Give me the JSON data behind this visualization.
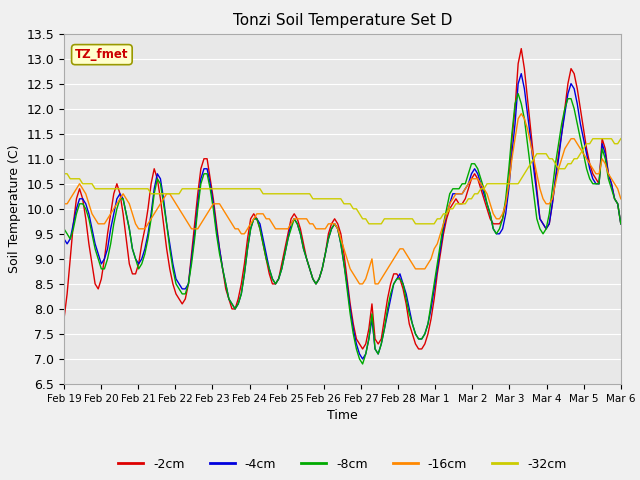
{
  "title": "Tonzi Soil Temperature Set D",
  "xlabel": "Time",
  "ylabel": "Soil Temperature (C)",
  "ylim": [
    6.5,
    13.5
  ],
  "legend_label": "TZ_fmet",
  "series_labels": [
    "-2cm",
    "-4cm",
    "-8cm",
    "-16cm",
    "-32cm"
  ],
  "series_colors": [
    "#dd0000",
    "#0000dd",
    "#00aa00",
    "#ff8800",
    "#cccc00"
  ],
  "xtick_labels": [
    "Feb 19",
    "Feb 20",
    "Feb 21",
    "Feb 22",
    "Feb 23",
    "Feb 24",
    "Feb 25",
    "Feb 26",
    "Feb 27",
    "Feb 28",
    "Mar 1",
    "Mar 2",
    "Mar 3",
    "Mar 4",
    "Mar 5",
    "Mar 6"
  ],
  "ytick_vals": [
    6.5,
    7.0,
    7.5,
    8.0,
    8.5,
    9.0,
    9.5,
    10.0,
    10.5,
    11.0,
    11.5,
    12.0,
    12.5,
    13.0,
    13.5
  ],
  "data_2cm": [
    7.8,
    8.3,
    9.0,
    9.7,
    10.2,
    10.4,
    10.2,
    9.8,
    9.3,
    8.9,
    8.5,
    8.4,
    8.6,
    9.0,
    9.5,
    9.9,
    10.3,
    10.5,
    10.3,
    9.9,
    9.4,
    8.9,
    8.7,
    8.7,
    8.9,
    9.3,
    9.6,
    10.0,
    10.5,
    10.8,
    10.6,
    10.2,
    9.7,
    9.2,
    8.8,
    8.5,
    8.3,
    8.2,
    8.1,
    8.2,
    8.5,
    9.1,
    9.7,
    10.3,
    10.8,
    11.0,
    11.0,
    10.6,
    10.2,
    9.7,
    9.2,
    8.8,
    8.4,
    8.2,
    8.0,
    8.0,
    8.2,
    8.5,
    8.9,
    9.4,
    9.8,
    9.9,
    9.8,
    9.6,
    9.3,
    9.0,
    8.7,
    8.5,
    8.5,
    8.6,
    8.9,
    9.2,
    9.5,
    9.8,
    9.9,
    9.8,
    9.6,
    9.3,
    9.0,
    8.8,
    8.6,
    8.5,
    8.6,
    8.8,
    9.1,
    9.5,
    9.7,
    9.8,
    9.7,
    9.5,
    9.1,
    8.6,
    8.1,
    7.7,
    7.4,
    7.3,
    7.2,
    7.3,
    7.6,
    8.1,
    7.4,
    7.3,
    7.4,
    7.8,
    8.2,
    8.5,
    8.7,
    8.7,
    8.6,
    8.4,
    8.1,
    7.7,
    7.5,
    7.3,
    7.2,
    7.2,
    7.3,
    7.5,
    7.8,
    8.2,
    8.7,
    9.1,
    9.5,
    9.8,
    10.0,
    10.1,
    10.2,
    10.1,
    10.1,
    10.2,
    10.4,
    10.6,
    10.7,
    10.6,
    10.4,
    10.2,
    10.0,
    9.8,
    9.7,
    9.7,
    9.7,
    9.8,
    10.1,
    10.5,
    11.4,
    12.0,
    12.9,
    13.2,
    12.8,
    12.2,
    11.6,
    11.0,
    10.4,
    9.8,
    9.7,
    9.6,
    9.7,
    10.1,
    10.6,
    11.1,
    11.5,
    12.0,
    12.5,
    12.8,
    12.7,
    12.4,
    12.0,
    11.6,
    11.2,
    10.9,
    10.7,
    10.6,
    10.5,
    11.4,
    11.2,
    10.7,
    10.5,
    10.2,
    10.1,
    9.7
  ],
  "data_4cm": [
    9.4,
    9.3,
    9.4,
    9.7,
    10.0,
    10.2,
    10.2,
    10.1,
    9.9,
    9.6,
    9.3,
    9.1,
    8.9,
    9.0,
    9.2,
    9.6,
    9.9,
    10.2,
    10.3,
    10.2,
    9.9,
    9.6,
    9.2,
    9.0,
    8.9,
    9.0,
    9.2,
    9.5,
    9.9,
    10.4,
    10.7,
    10.6,
    10.2,
    9.7,
    9.3,
    8.9,
    8.6,
    8.5,
    8.4,
    8.4,
    8.5,
    9.0,
    9.5,
    10.1,
    10.6,
    10.8,
    10.8,
    10.5,
    10.1,
    9.6,
    9.2,
    8.8,
    8.5,
    8.2,
    8.1,
    8.0,
    8.1,
    8.3,
    8.7,
    9.2,
    9.6,
    9.8,
    9.8,
    9.7,
    9.4,
    9.1,
    8.8,
    8.6,
    8.5,
    8.6,
    8.8,
    9.1,
    9.4,
    9.7,
    9.8,
    9.7,
    9.5,
    9.2,
    9.0,
    8.8,
    8.6,
    8.5,
    8.6,
    8.8,
    9.1,
    9.4,
    9.6,
    9.7,
    9.6,
    9.3,
    8.9,
    8.5,
    8.0,
    7.6,
    7.3,
    7.1,
    7.0,
    7.1,
    7.4,
    7.8,
    7.2,
    7.1,
    7.3,
    7.6,
    7.9,
    8.2,
    8.5,
    8.6,
    8.7,
    8.5,
    8.3,
    8.0,
    7.7,
    7.5,
    7.4,
    7.4,
    7.5,
    7.7,
    8.0,
    8.4,
    8.8,
    9.2,
    9.6,
    9.9,
    10.1,
    10.3,
    10.3,
    10.3,
    10.3,
    10.4,
    10.5,
    10.7,
    10.8,
    10.7,
    10.5,
    10.3,
    10.1,
    9.9,
    9.6,
    9.5,
    9.5,
    9.6,
    9.9,
    10.4,
    11.1,
    11.7,
    12.5,
    12.7,
    12.4,
    11.9,
    11.4,
    10.8,
    10.3,
    9.8,
    9.7,
    9.6,
    9.7,
    10.1,
    10.6,
    11.0,
    11.5,
    11.9,
    12.3,
    12.5,
    12.4,
    12.1,
    11.7,
    11.4,
    11.1,
    10.8,
    10.6,
    10.5,
    10.5,
    11.3,
    11.1,
    10.7,
    10.5,
    10.2,
    10.1,
    9.7
  ],
  "data_8cm": [
    9.6,
    9.5,
    9.4,
    9.6,
    9.9,
    10.1,
    10.1,
    10.0,
    9.8,
    9.5,
    9.2,
    9.0,
    8.8,
    8.8,
    9.0,
    9.3,
    9.7,
    10.0,
    10.2,
    10.2,
    9.9,
    9.6,
    9.2,
    9.0,
    8.8,
    8.9,
    9.1,
    9.4,
    9.8,
    10.3,
    10.6,
    10.5,
    10.1,
    9.7,
    9.2,
    8.8,
    8.5,
    8.4,
    8.3,
    8.3,
    8.5,
    8.9,
    9.4,
    10.0,
    10.5,
    10.7,
    10.7,
    10.4,
    10.0,
    9.5,
    9.1,
    8.8,
    8.5,
    8.2,
    8.1,
    8.0,
    8.1,
    8.3,
    8.7,
    9.2,
    9.6,
    9.8,
    9.8,
    9.6,
    9.3,
    9.0,
    8.8,
    8.6,
    8.5,
    8.6,
    8.8,
    9.1,
    9.4,
    9.6,
    9.8,
    9.7,
    9.5,
    9.2,
    9.0,
    8.8,
    8.6,
    8.5,
    8.6,
    8.8,
    9.1,
    9.4,
    9.6,
    9.7,
    9.6,
    9.3,
    8.9,
    8.4,
    7.9,
    7.5,
    7.2,
    7.0,
    6.9,
    7.1,
    7.4,
    7.9,
    7.2,
    7.1,
    7.3,
    7.6,
    8.0,
    8.3,
    8.5,
    8.6,
    8.6,
    8.5,
    8.2,
    7.9,
    7.7,
    7.5,
    7.4,
    7.4,
    7.5,
    7.7,
    8.1,
    8.5,
    8.9,
    9.3,
    9.7,
    10.0,
    10.3,
    10.4,
    10.4,
    10.4,
    10.5,
    10.5,
    10.7,
    10.9,
    10.9,
    10.8,
    10.6,
    10.4,
    10.1,
    9.9,
    9.6,
    9.5,
    9.6,
    9.8,
    10.2,
    10.8,
    11.5,
    12.1,
    12.3,
    12.1,
    11.8,
    11.3,
    10.8,
    10.3,
    9.8,
    9.6,
    9.5,
    9.6,
    9.9,
    10.4,
    10.9,
    11.3,
    11.7,
    12.0,
    12.2,
    12.2,
    12.0,
    11.7,
    11.4,
    11.1,
    10.8,
    10.6,
    10.5,
    10.5,
    10.5,
    11.2,
    11.0,
    10.6,
    10.4,
    10.2,
    10.1,
    9.7
  ],
  "data_16cm": [
    10.1,
    10.1,
    10.2,
    10.3,
    10.4,
    10.5,
    10.4,
    10.3,
    10.1,
    9.9,
    9.8,
    9.7,
    9.7,
    9.7,
    9.8,
    9.9,
    10.0,
    10.1,
    10.2,
    10.3,
    10.2,
    10.1,
    9.9,
    9.7,
    9.6,
    9.6,
    9.6,
    9.7,
    9.8,
    9.9,
    10.0,
    10.1,
    10.2,
    10.3,
    10.3,
    10.2,
    10.1,
    10.0,
    9.9,
    9.8,
    9.7,
    9.6,
    9.6,
    9.6,
    9.7,
    9.8,
    9.9,
    10.0,
    10.1,
    10.1,
    10.1,
    10.0,
    9.9,
    9.8,
    9.7,
    9.6,
    9.6,
    9.5,
    9.5,
    9.6,
    9.7,
    9.8,
    9.9,
    9.9,
    9.9,
    9.8,
    9.8,
    9.7,
    9.6,
    9.6,
    9.6,
    9.6,
    9.6,
    9.7,
    9.8,
    9.8,
    9.8,
    9.8,
    9.8,
    9.7,
    9.7,
    9.6,
    9.6,
    9.6,
    9.6,
    9.7,
    9.7,
    9.7,
    9.6,
    9.4,
    9.2,
    9.0,
    8.8,
    8.7,
    8.6,
    8.5,
    8.5,
    8.6,
    8.8,
    9.0,
    8.5,
    8.5,
    8.6,
    8.7,
    8.8,
    8.9,
    9.0,
    9.1,
    9.2,
    9.2,
    9.1,
    9.0,
    8.9,
    8.8,
    8.8,
    8.8,
    8.8,
    8.9,
    9.0,
    9.2,
    9.3,
    9.5,
    9.7,
    9.9,
    10.1,
    10.2,
    10.3,
    10.3,
    10.3,
    10.4,
    10.5,
    10.6,
    10.6,
    10.6,
    10.5,
    10.4,
    10.3,
    10.1,
    9.9,
    9.8,
    9.8,
    9.9,
    10.1,
    10.5,
    11.0,
    11.4,
    11.8,
    11.9,
    11.8,
    11.6,
    11.3,
    11.0,
    10.7,
    10.4,
    10.2,
    10.1,
    10.1,
    10.2,
    10.5,
    10.8,
    11.0,
    11.2,
    11.3,
    11.4,
    11.4,
    11.3,
    11.2,
    11.1,
    11.0,
    10.9,
    10.8,
    10.7,
    10.7,
    11.0,
    10.9,
    10.7,
    10.6,
    10.5,
    10.4,
    10.2
  ],
  "data_32cm": [
    10.7,
    10.7,
    10.6,
    10.6,
    10.6,
    10.6,
    10.5,
    10.5,
    10.5,
    10.5,
    10.4,
    10.4,
    10.4,
    10.4,
    10.4,
    10.4,
    10.4,
    10.4,
    10.4,
    10.4,
    10.4,
    10.4,
    10.4,
    10.4,
    10.4,
    10.4,
    10.4,
    10.4,
    10.3,
    10.3,
    10.3,
    10.3,
    10.3,
    10.3,
    10.3,
    10.3,
    10.3,
    10.3,
    10.4,
    10.4,
    10.4,
    10.4,
    10.4,
    10.4,
    10.4,
    10.4,
    10.4,
    10.4,
    10.4,
    10.4,
    10.4,
    10.4,
    10.4,
    10.4,
    10.4,
    10.4,
    10.4,
    10.4,
    10.4,
    10.4,
    10.4,
    10.4,
    10.4,
    10.4,
    10.3,
    10.3,
    10.3,
    10.3,
    10.3,
    10.3,
    10.3,
    10.3,
    10.3,
    10.3,
    10.3,
    10.3,
    10.3,
    10.3,
    10.3,
    10.3,
    10.2,
    10.2,
    10.2,
    10.2,
    10.2,
    10.2,
    10.2,
    10.2,
    10.2,
    10.2,
    10.1,
    10.1,
    10.1,
    10.0,
    10.0,
    9.9,
    9.8,
    9.8,
    9.7,
    9.7,
    9.7,
    9.7,
    9.7,
    9.8,
    9.8,
    9.8,
    9.8,
    9.8,
    9.8,
    9.8,
    9.8,
    9.8,
    9.8,
    9.7,
    9.7,
    9.7,
    9.7,
    9.7,
    9.7,
    9.7,
    9.8,
    9.8,
    9.9,
    9.9,
    10.0,
    10.0,
    10.1,
    10.1,
    10.1,
    10.1,
    10.2,
    10.2,
    10.3,
    10.3,
    10.4,
    10.4,
    10.5,
    10.5,
    10.5,
    10.5,
    10.5,
    10.5,
    10.5,
    10.5,
    10.5,
    10.5,
    10.5,
    10.6,
    10.7,
    10.8,
    10.9,
    11.0,
    11.1,
    11.1,
    11.1,
    11.1,
    11.0,
    11.0,
    10.9,
    10.8,
    10.8,
    10.8,
    10.9,
    10.9,
    11.0,
    11.0,
    11.1,
    11.2,
    11.3,
    11.3,
    11.4,
    11.4,
    11.4,
    11.4,
    11.4,
    11.4,
    11.4,
    11.3,
    11.3,
    11.4
  ]
}
